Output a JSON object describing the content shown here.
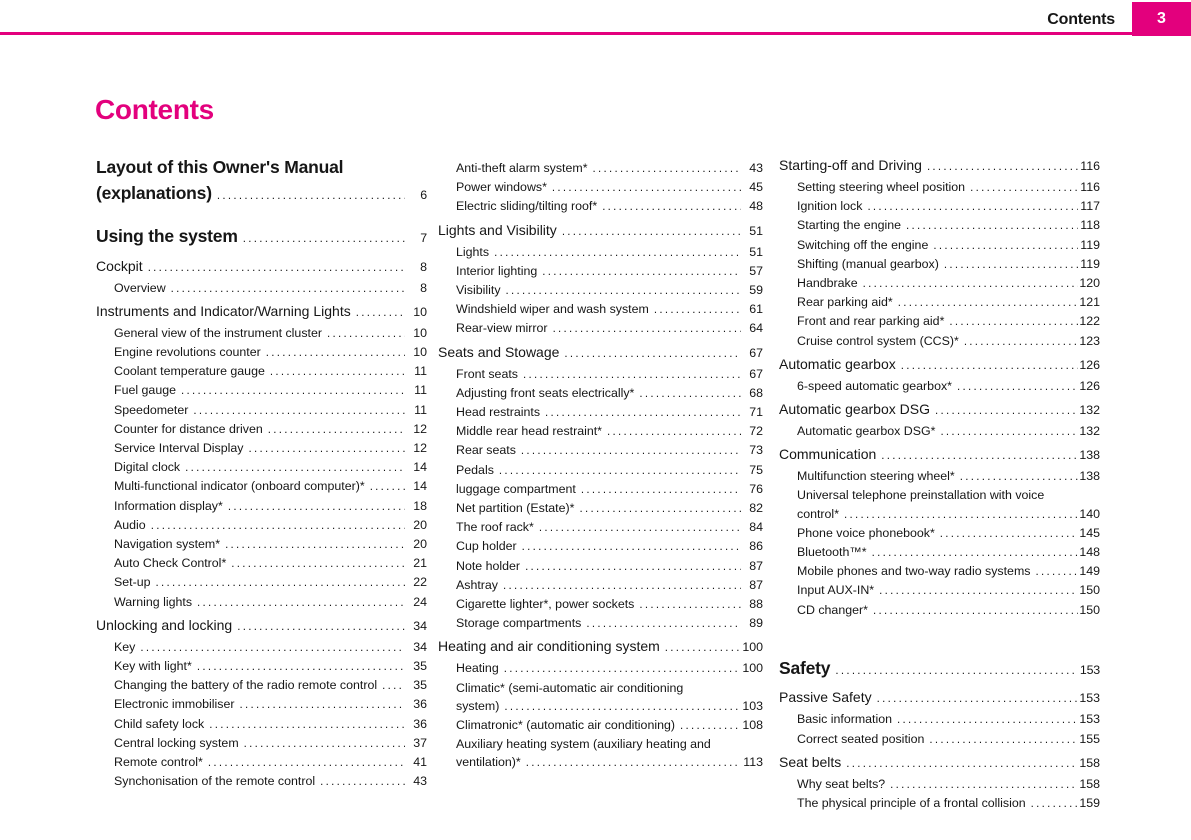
{
  "header": {
    "title": "Contents",
    "page_number": "3"
  },
  "page_title": "Contents",
  "accent_color": "#e3007d",
  "columns": [
    {
      "entries": [
        {
          "t": "chapter",
          "lines": [
            "Layout of this Owner's Manual",
            "(explanations)"
          ],
          "page": "6"
        },
        {
          "t": "chapter",
          "text": "Using the system",
          "page": "7"
        },
        {
          "t": "section",
          "text": "Cockpit",
          "page": "8"
        },
        {
          "t": "item",
          "text": "Overview",
          "page": "8"
        },
        {
          "t": "section",
          "text": "Instruments and Indicator/Warning Lights",
          "page": "10"
        },
        {
          "t": "item",
          "text": "General view of the instrument cluster",
          "page": "10"
        },
        {
          "t": "item",
          "text": "Engine revolutions counter",
          "page": "10"
        },
        {
          "t": "item",
          "text": "Coolant temperature gauge",
          "page": "11"
        },
        {
          "t": "item",
          "text": "Fuel gauge",
          "page": "11"
        },
        {
          "t": "item",
          "text": "Speedometer",
          "page": "11"
        },
        {
          "t": "item",
          "text": "Counter for distance driven",
          "page": "12"
        },
        {
          "t": "item",
          "text": "Service Interval Display",
          "page": "12"
        },
        {
          "t": "item",
          "text": "Digital clock",
          "page": "14"
        },
        {
          "t": "item",
          "text": "Multi-functional indicator (onboard computer)*",
          "page": "14"
        },
        {
          "t": "item",
          "text": "Information display*",
          "page": "18"
        },
        {
          "t": "item",
          "text": "Audio",
          "page": "20"
        },
        {
          "t": "item",
          "text": "Navigation system*",
          "page": "20"
        },
        {
          "t": "item",
          "text": "Auto Check Control*",
          "page": "21"
        },
        {
          "t": "item",
          "text": "Set-up",
          "page": "22"
        },
        {
          "t": "item",
          "text": "Warning lights",
          "page": "24"
        },
        {
          "t": "section",
          "text": "Unlocking and locking",
          "page": "34"
        },
        {
          "t": "item",
          "text": "Key",
          "page": "34"
        },
        {
          "t": "item",
          "text": "Key with light*",
          "page": "35"
        },
        {
          "t": "item",
          "text": "Changing the battery of the radio remote control",
          "page": "35"
        },
        {
          "t": "item",
          "text": "Electronic immobiliser",
          "page": "36"
        },
        {
          "t": "item",
          "text": "Child safety lock",
          "page": "36"
        },
        {
          "t": "item",
          "text": "Central locking system",
          "page": "37"
        },
        {
          "t": "item",
          "text": "Remote control*",
          "page": "41"
        },
        {
          "t": "item",
          "text": "Synchonisation of the remote control",
          "page": "43"
        }
      ]
    },
    {
      "entries": [
        {
          "t": "item",
          "text": "Anti-theft alarm system*",
          "page": "43"
        },
        {
          "t": "item",
          "text": "Power windows*",
          "page": "45"
        },
        {
          "t": "item",
          "text": "Electric sliding/tilting roof*",
          "page": "48"
        },
        {
          "t": "section",
          "text": "Lights and Visibility",
          "page": "51"
        },
        {
          "t": "item",
          "text": "Lights",
          "page": "51"
        },
        {
          "t": "item",
          "text": "Interior lighting",
          "page": "57"
        },
        {
          "t": "item",
          "text": "Visibility",
          "page": "59"
        },
        {
          "t": "item",
          "text": "Windshield wiper and wash system",
          "page": "61"
        },
        {
          "t": "item",
          "text": "Rear-view mirror",
          "page": "64"
        },
        {
          "t": "section",
          "text": "Seats and Stowage",
          "page": "67"
        },
        {
          "t": "item",
          "text": "Front seats",
          "page": "67"
        },
        {
          "t": "item",
          "text": "Adjusting front seats electrically*",
          "page": "68"
        },
        {
          "t": "item",
          "text": "Head restraints",
          "page": "71"
        },
        {
          "t": "item",
          "text": "Middle rear head restraint*",
          "page": "72"
        },
        {
          "t": "item",
          "text": "Rear seats",
          "page": "73"
        },
        {
          "t": "item",
          "text": "Pedals",
          "page": "75"
        },
        {
          "t": "item",
          "text": "luggage compartment",
          "page": "76"
        },
        {
          "t": "item",
          "text": "Net partition (Estate)*",
          "page": "82"
        },
        {
          "t": "item",
          "text": "The roof rack*",
          "page": "84"
        },
        {
          "t": "item",
          "text": "Cup holder",
          "page": "86"
        },
        {
          "t": "item",
          "text": "Note holder",
          "page": "87"
        },
        {
          "t": "item",
          "text": "Ashtray",
          "page": "87"
        },
        {
          "t": "item",
          "text": "Cigarette lighter*, power sockets",
          "page": "88"
        },
        {
          "t": "item",
          "text": "Storage compartments",
          "page": "89"
        },
        {
          "t": "section",
          "text": "Heating and air conditioning system",
          "page": "100"
        },
        {
          "t": "item",
          "text": "Heating",
          "page": "100"
        },
        {
          "t": "item",
          "lines": [
            "Climatic* (semi-automatic air conditioning",
            "system)"
          ],
          "page": "103"
        },
        {
          "t": "item",
          "text": "Climatronic* (automatic air conditioning)",
          "page": "108"
        },
        {
          "t": "item",
          "lines": [
            "Auxiliary heating system (auxiliary heating and",
            "ventilation)*"
          ],
          "page": "113"
        }
      ]
    },
    {
      "entries": [
        {
          "t": "section",
          "text": "Starting-off and Driving",
          "page": "116"
        },
        {
          "t": "item",
          "text": "Setting steering wheel position",
          "page": "116"
        },
        {
          "t": "item",
          "text": "Ignition lock",
          "page": "117"
        },
        {
          "t": "item",
          "text": "Starting the engine",
          "page": "118"
        },
        {
          "t": "item",
          "text": "Switching off the engine",
          "page": "119"
        },
        {
          "t": "item",
          "text": "Shifting (manual gearbox)",
          "page": "119"
        },
        {
          "t": "item",
          "text": "Handbrake",
          "page": "120"
        },
        {
          "t": "item",
          "text": "Rear parking aid*",
          "page": "121"
        },
        {
          "t": "item",
          "text": "Front and rear parking aid*",
          "page": "122"
        },
        {
          "t": "item",
          "text": "Cruise control system (CCS)*",
          "page": "123"
        },
        {
          "t": "section",
          "text": "Automatic gearbox",
          "page": "126"
        },
        {
          "t": "item",
          "text": "6-speed automatic gearbox*",
          "page": "126"
        },
        {
          "t": "section",
          "text": "Automatic gearbox DSG",
          "page": "132"
        },
        {
          "t": "item",
          "text": "Automatic gearbox DSG*",
          "page": "132"
        },
        {
          "t": "section",
          "text": "Communication",
          "page": "138"
        },
        {
          "t": "item",
          "text": "Multifunction steering wheel*",
          "page": "138"
        },
        {
          "t": "item",
          "lines": [
            "Universal telephone preinstallation with voice",
            "control*"
          ],
          "page": "140"
        },
        {
          "t": "item",
          "text": "Phone voice phonebook*",
          "page": "145"
        },
        {
          "t": "item",
          "text": "Bluetooth™*",
          "page": "148"
        },
        {
          "t": "item",
          "text": "Mobile phones and two-way radio systems",
          "page": "149"
        },
        {
          "t": "item",
          "text": "Input AUX-IN*",
          "page": "150"
        },
        {
          "t": "item",
          "text": "CD changer*",
          "page": "150"
        },
        {
          "t": "chapter",
          "text": "Safety",
          "page": "153",
          "gap": true
        },
        {
          "t": "section",
          "text": "Passive Safety",
          "page": "153"
        },
        {
          "t": "item",
          "text": "Basic information",
          "page": "153"
        },
        {
          "t": "item",
          "text": "Correct seated position",
          "page": "155"
        },
        {
          "t": "section",
          "text": "Seat belts",
          "page": "158"
        },
        {
          "t": "item",
          "text": "Why seat belts?",
          "page": "158"
        },
        {
          "t": "item",
          "text": "The physical principle of a frontal collision",
          "page": "159"
        }
      ]
    }
  ]
}
